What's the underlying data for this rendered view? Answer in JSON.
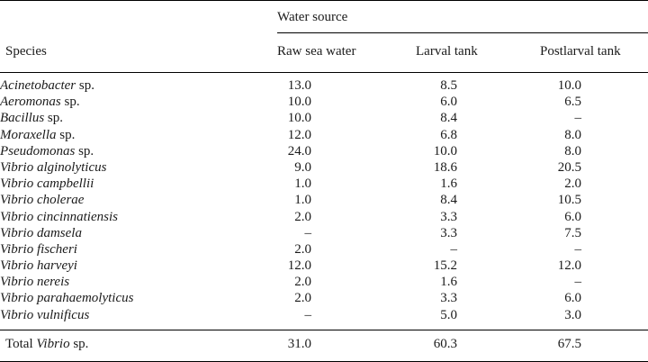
{
  "header": {
    "group_label": "Water source",
    "species_label": "Species",
    "columns": [
      "Raw sea water",
      "Larval tank",
      "Postlarval tank"
    ]
  },
  "rows": [
    {
      "genus": "Acinetobacter",
      "suffix": " sp.",
      "raw": "13.0",
      "larval": "8.5",
      "postlarval": "10.0"
    },
    {
      "genus": "Aeromonas",
      "suffix": " sp.",
      "raw": "10.0",
      "larval": "6.0",
      "postlarval": "6.5"
    },
    {
      "genus": "Bacillus",
      "suffix": " sp.",
      "raw": "10.0",
      "larval": "8.4",
      "postlarval": "–"
    },
    {
      "genus": "Moraxella",
      "suffix": " sp.",
      "raw": "12.0",
      "larval": "6.8",
      "postlarval": "8.0"
    },
    {
      "genus": "Pseudomonas",
      "suffix": " sp.",
      "raw": "24.0",
      "larval": "10.0",
      "postlarval": "8.0"
    },
    {
      "genus": "Vibrio alginolyticus",
      "suffix": "",
      "raw": "9.0",
      "larval": "18.6",
      "postlarval": "20.5"
    },
    {
      "genus": "Vibrio campbellii",
      "suffix": "",
      "raw": "1.0",
      "larval": "1.6",
      "postlarval": "2.0"
    },
    {
      "genus": "Vibrio cholerae",
      "suffix": "",
      "raw": "1.0",
      "larval": "8.4",
      "postlarval": "10.5"
    },
    {
      "genus": "Vibrio cincinnatiensis",
      "suffix": "",
      "raw": "2.0",
      "larval": "3.3",
      "postlarval": "6.0"
    },
    {
      "genus": "Vibrio damsela",
      "suffix": "",
      "raw": "–",
      "larval": "3.3",
      "postlarval": "7.5"
    },
    {
      "genus": "Vibrio fischeri",
      "suffix": "",
      "raw": "2.0",
      "larval": "–",
      "postlarval": "–"
    },
    {
      "genus": "Vibrio harveyi",
      "suffix": "",
      "raw": "12.0",
      "larval": "15.2",
      "postlarval": "12.0"
    },
    {
      "genus": "Vibrio nereis",
      "suffix": "",
      "raw": "2.0",
      "larval": "1.6",
      "postlarval": "–"
    },
    {
      "genus": "Vibrio parahaemolyticus",
      "suffix": "",
      "raw": "2.0",
      "larval": "3.3",
      "postlarval": "6.0"
    },
    {
      "genus": "Vibrio vulnificus",
      "suffix": "",
      "raw": "–",
      "larval": "5.0",
      "postlarval": "3.0"
    }
  ],
  "total": {
    "prefix": "Total ",
    "genus": "Vibrio",
    "suffix": " sp.",
    "raw": "31.0",
    "larval": "60.3",
    "postlarval": "67.5"
  }
}
